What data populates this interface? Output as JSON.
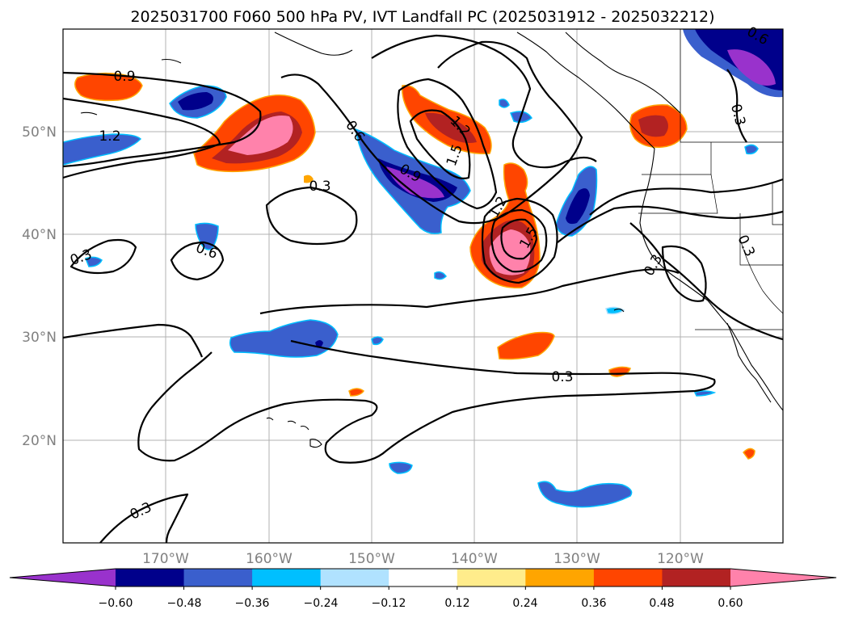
{
  "title": "2025031700 F060 500 hPa PV, IVT Landfall PC (2025031912 - 2025032212)",
  "axes": {
    "lon_ticks": [
      "170°W",
      "160°W",
      "150°W",
      "140°W",
      "130°W",
      "120°W"
    ],
    "lat_ticks": [
      "50°N",
      "40°N",
      "30°N",
      "20°N"
    ]
  },
  "colorbar": {
    "ticks": [
      "−0.60",
      "−0.48",
      "−0.36",
      "−0.24",
      "−0.12",
      "0.12",
      "0.24",
      "0.36",
      "0.48",
      "0.60"
    ],
    "extend": "both",
    "colors": {
      "under": "#9932cc",
      "levels": [
        "#00008b",
        "#3a5fcd",
        "#00bfff",
        "#b0e2ff",
        "#ffffff",
        "#ffec8b",
        "#ffa500",
        "#ff4500",
        "#b22222",
        "#ff82ab"
      ],
      "over": "#ff82ab"
    }
  },
  "contour_labels": [
    "0.9",
    "1.2",
    "0.6",
    "0.3",
    "0.9",
    "1.2",
    "1.5",
    "1.2",
    "1.5",
    "0.6",
    "0.3",
    "0.3",
    "0.3",
    "0.3",
    "0.3",
    "0.3",
    "0.6"
  ],
  "chart_data": {
    "type": "map",
    "title": "2025031700 F060 500 hPa PV, IVT Landfall PC (2025031912 - 2025032212)",
    "projection": "PlateCarree",
    "lon_range": [
      -180,
      -110
    ],
    "lat_range": [
      10,
      60
    ],
    "filled_field": {
      "levels": [
        -0.6,
        -0.48,
        -0.36,
        -0.24,
        -0.12,
        0.12,
        0.24,
        0.36,
        0.48,
        0.6
      ],
      "extend": "both"
    },
    "contour_field": {
      "levels_labeled": [
        0.3,
        0.6,
        0.9,
        1.2,
        1.5
      ]
    },
    "grid": true
  }
}
